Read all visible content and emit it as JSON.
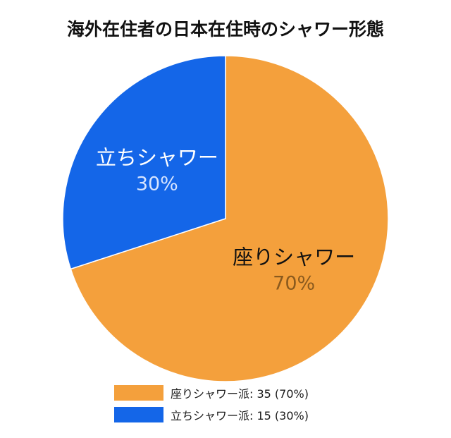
{
  "colors": {
    "orange": "#F4A03C",
    "blue": "#1466E8"
  },
  "chart_data": {
    "type": "pie",
    "title": "海外在住者の日本在住時のシャワー形態",
    "slices": [
      {
        "label": "座りシャワー",
        "value": 35,
        "percent": "70%",
        "legend": "座りシャワー派: 35 (70%)",
        "color": "#F4A03C",
        "label_color": "#111111",
        "percent_color": "#8a5a1e"
      },
      {
        "label": "立ちシャワー",
        "value": 15,
        "percent": "30%",
        "legend": "立ちシャワー派: 15 (30%)",
        "color": "#1466E8",
        "label_color": "#ffffff",
        "percent_color": "#d6e4ff"
      }
    ],
    "start_angle_deg": 0,
    "direction": "clockwise",
    "legend_position": "bottom"
  }
}
